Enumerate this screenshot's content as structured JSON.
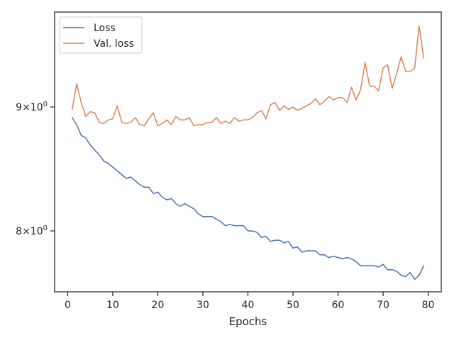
{
  "chart_data": {
    "type": "line",
    "title": "",
    "xlabel": "Epochs",
    "ylabel": "",
    "yscale": "log",
    "xlim": [
      -2.9,
      82.9
    ],
    "ylim": [
      7.55,
      9.85
    ],
    "grid": false,
    "legend_position": "top-left",
    "x_ticks": [
      0,
      10,
      20,
      30,
      40,
      50,
      60,
      70,
      80
    ],
    "y_ticks": [
      {
        "value": 8,
        "mantissa": "8",
        "base": "10",
        "exp": "0"
      },
      {
        "value": 9,
        "mantissa": "9",
        "base": "10",
        "exp": "0"
      }
    ],
    "x": [
      1,
      2,
      3,
      4,
      5,
      6,
      7,
      8,
      9,
      10,
      11,
      12,
      13,
      14,
      15,
      16,
      17,
      18,
      19,
      20,
      21,
      22,
      23,
      24,
      25,
      26,
      27,
      28,
      29,
      30,
      31,
      32,
      33,
      34,
      35,
      36,
      37,
      38,
      39,
      40,
      41,
      42,
      43,
      44,
      45,
      46,
      47,
      48,
      49,
      50,
      51,
      52,
      53,
      54,
      55,
      56,
      57,
      58,
      59,
      60,
      61,
      62,
      63,
      64,
      65,
      66,
      67,
      68,
      69,
      70,
      71,
      72,
      73,
      74,
      75,
      76,
      77,
      78,
      79
    ],
    "series": [
      {
        "name": "Loss",
        "color": "#4c72b0",
        "values": [
          8.91,
          8.85,
          8.76,
          8.74,
          8.68,
          8.64,
          8.6,
          8.55,
          8.53,
          8.5,
          8.47,
          8.44,
          8.41,
          8.42,
          8.39,
          8.36,
          8.34,
          8.34,
          8.29,
          8.3,
          8.26,
          8.24,
          8.25,
          8.21,
          8.19,
          8.21,
          8.19,
          8.17,
          8.13,
          8.11,
          8.11,
          8.11,
          8.09,
          8.07,
          8.04,
          8.05,
          8.04,
          8.04,
          8.04,
          8.0,
          8.0,
          7.99,
          7.95,
          7.96,
          7.92,
          7.93,
          7.93,
          7.91,
          7.92,
          7.87,
          7.88,
          7.84,
          7.85,
          7.85,
          7.85,
          7.82,
          7.82,
          7.8,
          7.81,
          7.8,
          7.79,
          7.8,
          7.79,
          7.77,
          7.74,
          7.74,
          7.74,
          7.74,
          7.73,
          7.75,
          7.71,
          7.71,
          7.7,
          7.67,
          7.66,
          7.69,
          7.64,
          7.67,
          7.74
        ]
      },
      {
        "name": "Val. loss",
        "color": "#dd8452",
        "values": [
          8.98,
          9.2,
          9.04,
          8.92,
          8.96,
          8.95,
          8.87,
          8.86,
          8.89,
          8.9,
          9.01,
          8.87,
          8.86,
          8.87,
          8.91,
          8.85,
          8.84,
          8.9,
          8.95,
          8.84,
          8.86,
          8.89,
          8.85,
          8.92,
          8.89,
          8.89,
          8.91,
          8.84,
          8.85,
          8.85,
          8.87,
          8.87,
          8.91,
          8.86,
          8.88,
          8.86,
          8.91,
          8.88,
          8.89,
          8.89,
          8.91,
          8.95,
          8.97,
          8.9,
          9.02,
          9.04,
          8.97,
          9.01,
          8.98,
          9.0,
          8.97,
          8.99,
          9.01,
          9.03,
          9.07,
          9.02,
          9.05,
          9.09,
          9.06,
          9.08,
          9.08,
          9.04,
          9.17,
          9.06,
          9.15,
          9.39,
          9.18,
          9.18,
          9.14,
          9.34,
          9.37,
          9.16,
          9.29,
          9.44,
          9.31,
          9.31,
          9.34,
          9.72,
          9.43
        ]
      }
    ]
  }
}
